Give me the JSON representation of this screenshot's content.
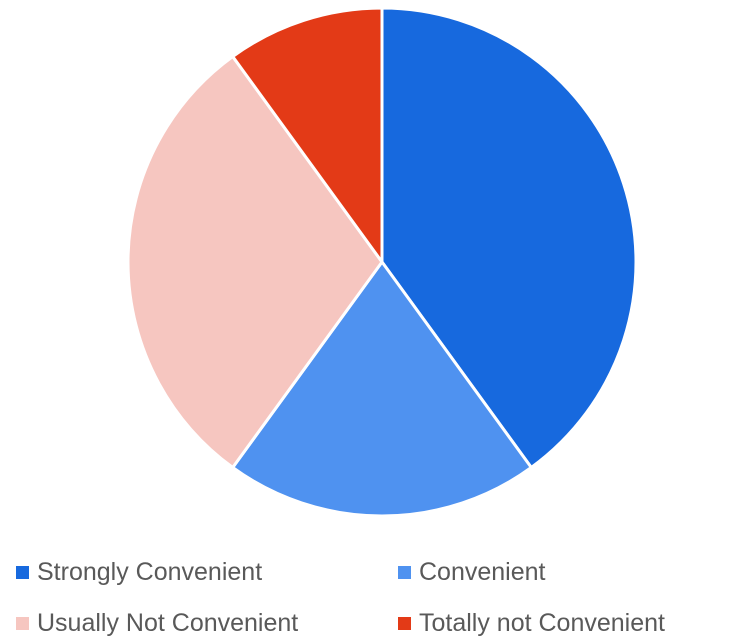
{
  "chart_data": {
    "type": "pie",
    "title": "",
    "categories": [
      "Strongly Convenient",
      "Convenient",
      "Usually Not Convenient",
      "Totally not Convenient"
    ],
    "values": [
      40,
      20,
      30,
      10
    ],
    "colors": [
      "#1769de",
      "#4f92f0",
      "#f6c6c0",
      "#e33a17"
    ],
    "start_angle_deg": 0,
    "direction": "clockwise",
    "legend_position": "bottom"
  },
  "legend": {
    "items": [
      {
        "label": "Strongly Convenient",
        "color": "#1769de"
      },
      {
        "label": "Convenient",
        "color": "#4f92f0"
      },
      {
        "label": "Usually Not Convenient",
        "color": "#f6c6c0"
      },
      {
        "label": "Totally not Convenient",
        "color": "#e33a17"
      }
    ]
  }
}
